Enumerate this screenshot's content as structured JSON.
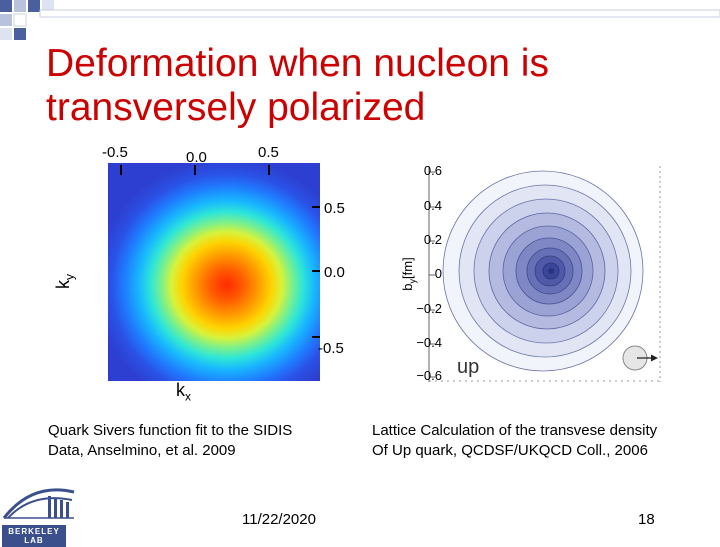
{
  "slide": {
    "title": "Deformation when nucleon is transversely polarized",
    "date": "11/22/2020",
    "page_number": "18"
  },
  "left_plot": {
    "top_ticks": [
      "-0.5",
      "0.0",
      "0.5"
    ],
    "right_ticks": [
      "0.5",
      "0.0",
      "-0.5"
    ],
    "ylabel_main": "k",
    "ylabel_sub": "y",
    "xlabel_main": "k",
    "xlabel_sub": "x",
    "caption_line1": "Quark Sivers function fit to the SIDIS",
    "caption_line2": "Data, Anselmino, et al. 2009"
  },
  "right_plot": {
    "yticks": [
      "0.6",
      "0.4",
      "0.2",
      "0",
      "−0.2",
      "−0.4",
      "−0.6"
    ],
    "ylabel_main": "b",
    "ylabel_sub": "y",
    "ylabel_unit": "[fm]",
    "flavor_label": "up",
    "caption_line1": "Lattice Calculation of the transvese density",
    "caption_line2": "Of Up quark, QCDSF/UKQCD Coll., 2006"
  },
  "logo": {
    "text": "BERKELEY LAB"
  },
  "colors": {
    "title": "#cc0000",
    "deco_blue": "#4a5f9e",
    "contour_blue": "#3c4aa8"
  }
}
